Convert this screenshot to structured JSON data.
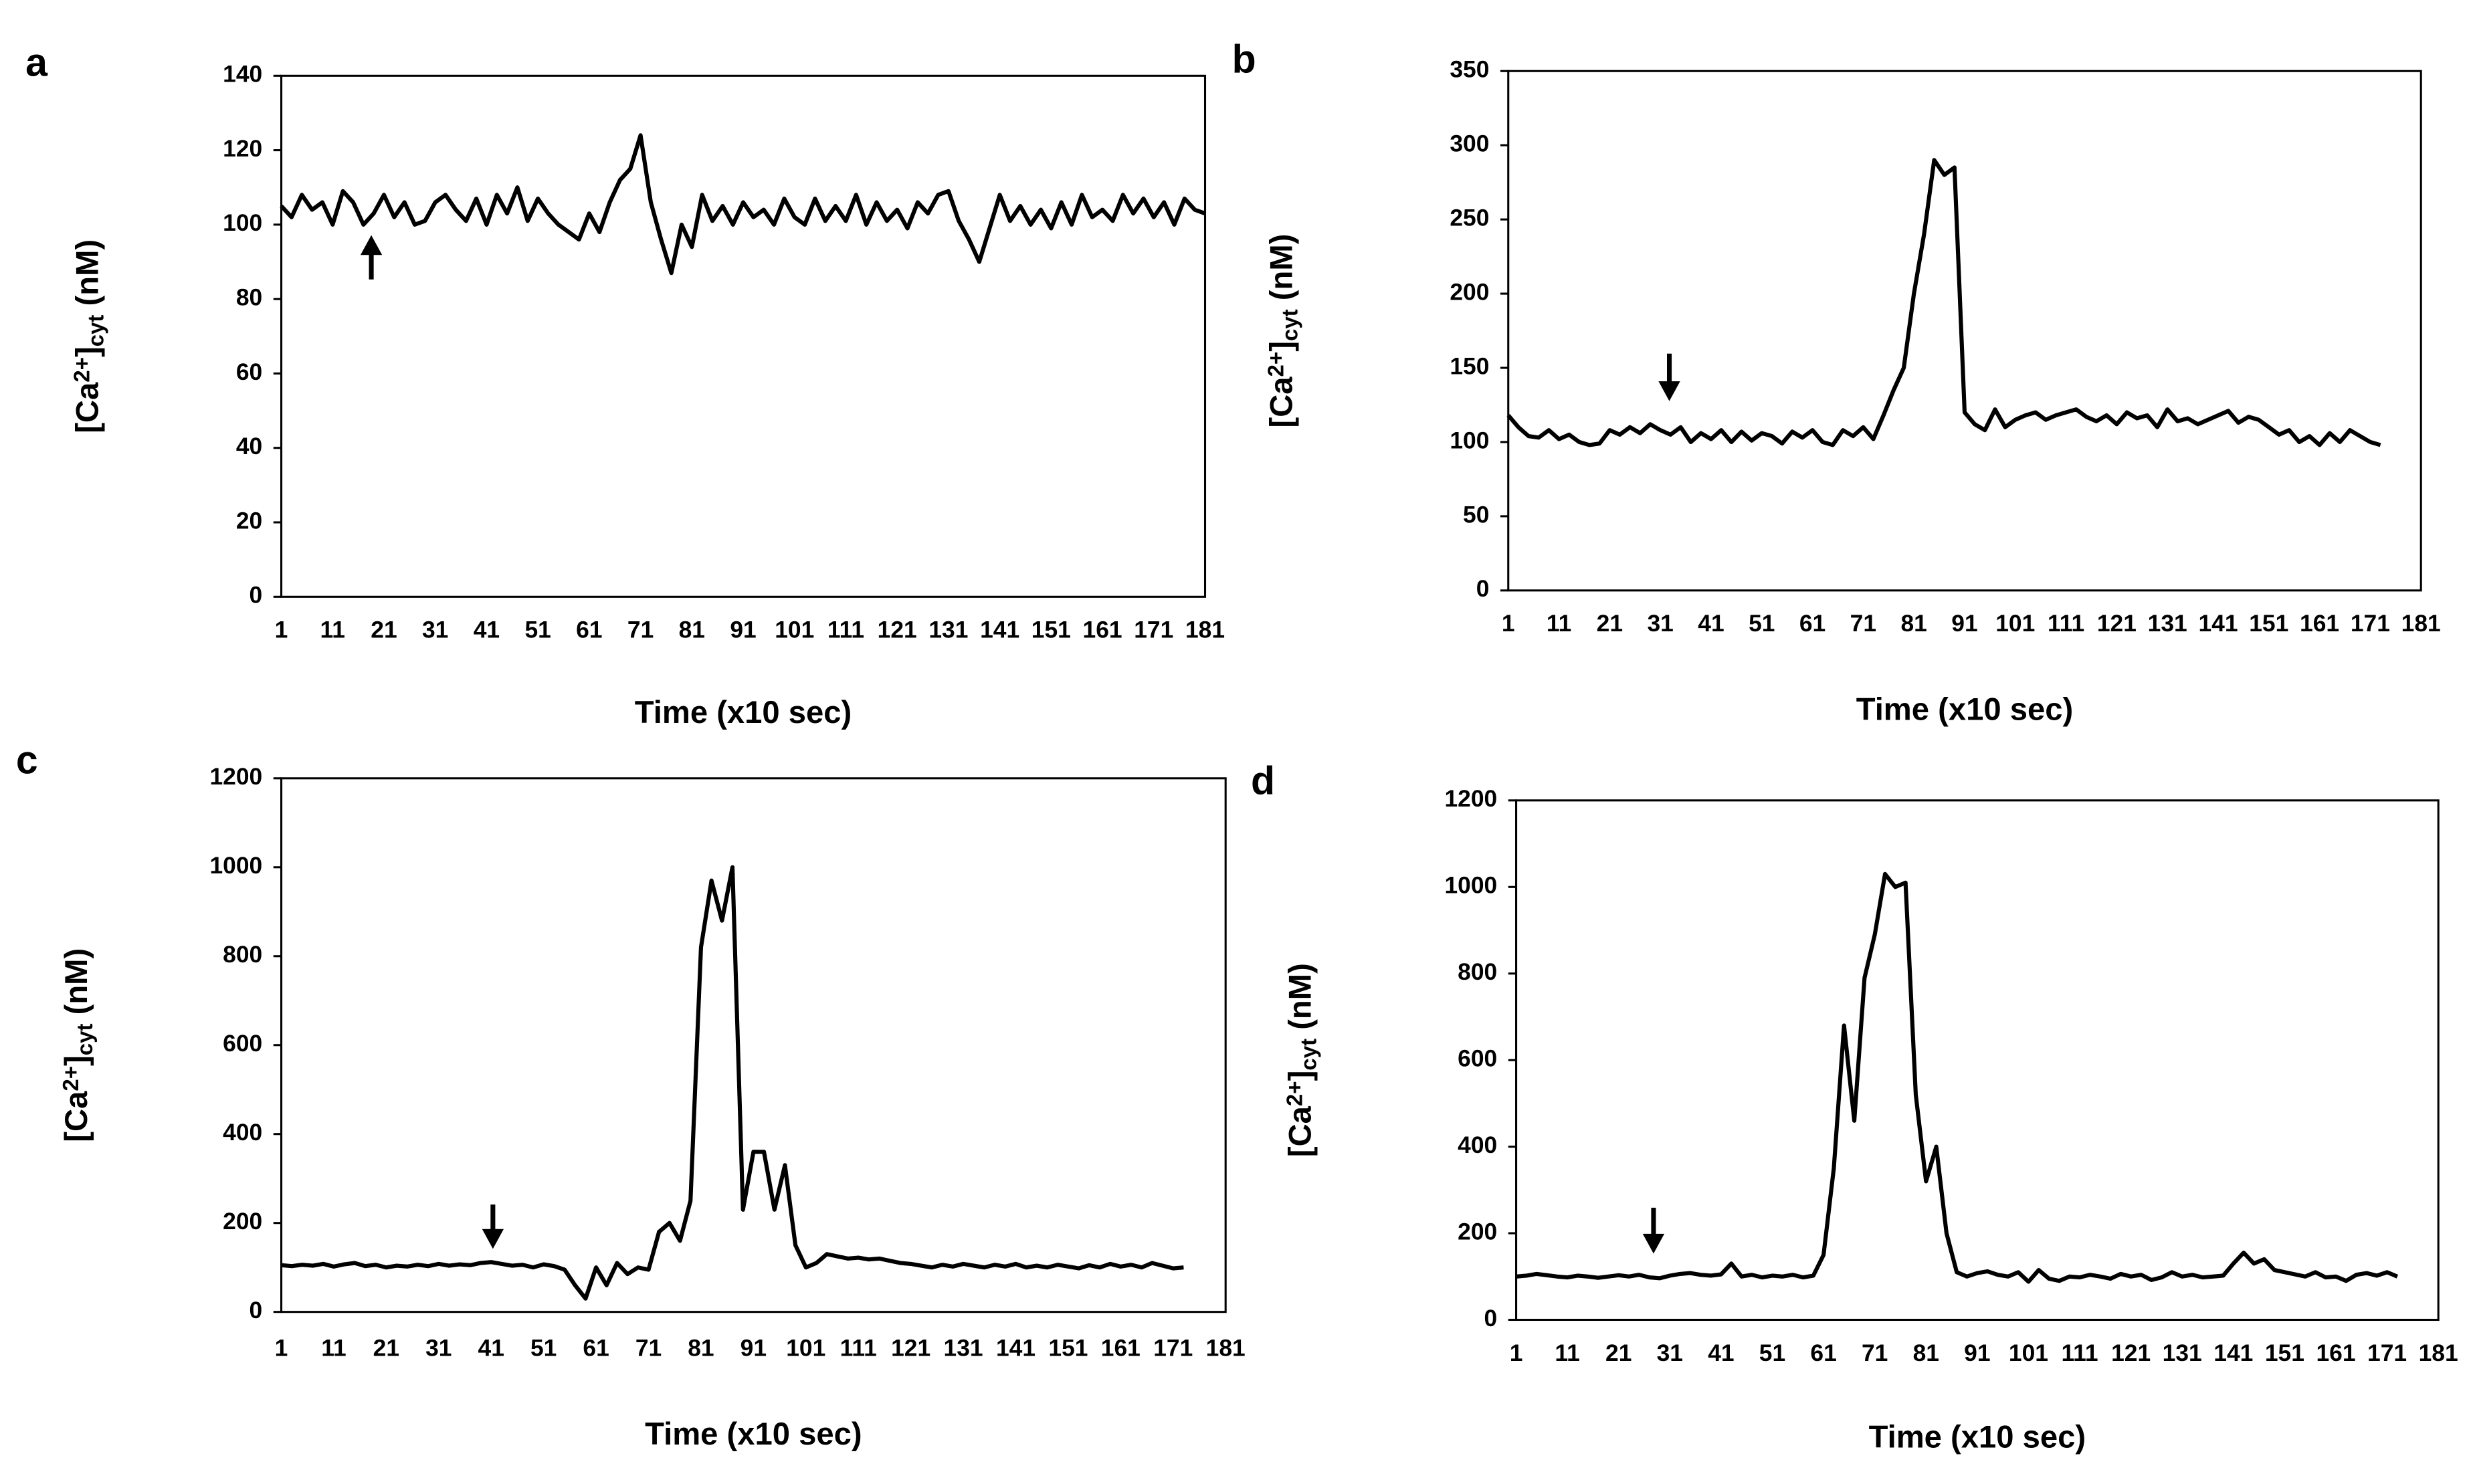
{
  "chart_data": [
    {
      "type": "line",
      "label": "a",
      "xlabel": "Time (x10 sec)",
      "ylabel": [
        "[Ca",
        "2+",
        "]",
        "cyt",
        " (nM)"
      ],
      "color": "#000000",
      "xlim": [
        1,
        181
      ],
      "xticks": [
        1,
        11,
        21,
        31,
        41,
        51,
        61,
        71,
        81,
        91,
        101,
        111,
        121,
        131,
        141,
        151,
        161,
        171,
        181
      ],
      "ylim": [
        0,
        140
      ],
      "yticks": [
        0,
        20,
        40,
        60,
        80,
        100,
        120,
        140
      ],
      "x": [
        1,
        3,
        5,
        7,
        9,
        11,
        13,
        15,
        17,
        19,
        21,
        23,
        25,
        27,
        29,
        31,
        33,
        35,
        37,
        39,
        41,
        43,
        45,
        47,
        49,
        51,
        53,
        55,
        57,
        59,
        61,
        63,
        65,
        67,
        69,
        71,
        73,
        75,
        77,
        79,
        81,
        83,
        85,
        87,
        89,
        91,
        93,
        95,
        97,
        99,
        101,
        103,
        105,
        107,
        109,
        111,
        113,
        115,
        117,
        119,
        121,
        123,
        125,
        127,
        129,
        131,
        133,
        135,
        137,
        139,
        141,
        143,
        145,
        147,
        149,
        151,
        153,
        155,
        157,
        159,
        161,
        163,
        165,
        167,
        169,
        171,
        173,
        175,
        177,
        179,
        181
      ],
      "values": [
        105,
        102,
        108,
        104,
        106,
        100,
        109,
        106,
        100,
        103,
        108,
        102,
        106,
        100,
        101,
        106,
        108,
        104,
        101,
        107,
        100,
        108,
        103,
        110,
        101,
        107,
        103,
        100,
        98,
        96,
        103,
        98,
        106,
        112,
        115,
        124,
        106,
        96,
        87,
        100,
        94,
        108,
        101,
        105,
        100,
        106,
        102,
        104,
        100,
        107,
        102,
        100,
        107,
        101,
        105,
        101,
        108,
        100,
        106,
        101,
        104,
        99,
        106,
        103,
        108,
        109,
        101,
        96,
        90,
        99,
        108,
        101,
        105,
        100,
        104,
        99,
        106,
        100,
        108,
        102,
        104,
        101,
        108,
        103,
        107,
        102,
        106,
        100,
        107,
        104,
        103
      ]
    },
    {
      "type": "line",
      "label": "b",
      "xlabel": "Time (x10 sec)",
      "ylabel": [
        "[Ca",
        "2+",
        "]",
        "cyt",
        " (nM)"
      ],
      "color": "#000000",
      "xlim": [
        1,
        181
      ],
      "xticks": [
        1,
        11,
        21,
        31,
        41,
        51,
        61,
        71,
        81,
        91,
        101,
        111,
        121,
        131,
        141,
        151,
        161,
        171,
        181
      ],
      "ylim": [
        0,
        350
      ],
      "yticks": [
        0,
        50,
        100,
        150,
        200,
        250,
        300,
        350
      ],
      "x": [
        1,
        3,
        5,
        7,
        9,
        11,
        13,
        15,
        17,
        19,
        21,
        23,
        25,
        27,
        29,
        31,
        33,
        35,
        37,
        39,
        41,
        43,
        45,
        47,
        49,
        51,
        53,
        55,
        57,
        59,
        61,
        63,
        65,
        67,
        69,
        71,
        73,
        75,
        77,
        79,
        81,
        83,
        85,
        87,
        89,
        91,
        93,
        95,
        97,
        99,
        101,
        103,
        105,
        107,
        109,
        111,
        113,
        115,
        117,
        119,
        121,
        123,
        125,
        127,
        129,
        131,
        133,
        135,
        137,
        139,
        141,
        143,
        145,
        147,
        149,
        151,
        153,
        155,
        157,
        159,
        161,
        163,
        165,
        167,
        169,
        171,
        173
      ],
      "values": [
        118,
        110,
        104,
        103,
        108,
        102,
        105,
        100,
        98,
        99,
        108,
        105,
        110,
        106,
        112,
        108,
        105,
        110,
        100,
        106,
        102,
        108,
        100,
        107,
        101,
        106,
        104,
        99,
        107,
        103,
        108,
        100,
        98,
        108,
        104,
        110,
        102,
        118,
        135,
        150,
        200,
        240,
        290,
        280,
        285,
        120,
        112,
        108,
        122,
        110,
        115,
        118,
        120,
        115,
        118,
        120,
        122,
        117,
        114,
        118,
        112,
        120,
        116,
        118,
        110,
        122,
        114,
        116,
        112,
        115,
        118,
        121,
        113,
        117,
        115,
        110,
        105,
        108,
        100,
        104,
        98,
        106,
        100,
        108,
        104,
        100,
        98
      ]
    },
    {
      "type": "line",
      "label": "c",
      "xlabel": "Time (x10 sec)",
      "ylabel": [
        "[Ca",
        "2+",
        "]",
        "cyt",
        " (nM)"
      ],
      "color": "#000000",
      "xlim": [
        1,
        181
      ],
      "xticks": [
        1,
        11,
        21,
        31,
        41,
        51,
        61,
        71,
        81,
        91,
        101,
        111,
        121,
        131,
        141,
        151,
        161,
        171,
        181
      ],
      "ylim": [
        0,
        1200
      ],
      "yticks": [
        0,
        200,
        400,
        600,
        800,
        1000,
        1200
      ],
      "x": [
        1,
        3,
        5,
        7,
        9,
        11,
        13,
        15,
        17,
        19,
        21,
        23,
        25,
        27,
        29,
        31,
        33,
        35,
        37,
        39,
        41,
        43,
        45,
        47,
        49,
        51,
        53,
        55,
        57,
        59,
        61,
        63,
        65,
        67,
        69,
        71,
        73,
        75,
        77,
        79,
        81,
        83,
        85,
        87,
        89,
        91,
        93,
        95,
        97,
        99,
        101,
        103,
        105,
        107,
        109,
        111,
        113,
        115,
        117,
        119,
        121,
        123,
        125,
        127,
        129,
        131,
        133,
        135,
        137,
        139,
        141,
        143,
        145,
        147,
        149,
        151,
        153,
        155,
        157,
        159,
        161,
        163,
        165,
        167,
        169,
        171,
        173
      ],
      "values": [
        105,
        103,
        106,
        104,
        108,
        102,
        107,
        110,
        103,
        106,
        100,
        104,
        102,
        106,
        103,
        108,
        104,
        107,
        105,
        110,
        112,
        108,
        104,
        106,
        100,
        107,
        103,
        95,
        60,
        30,
        100,
        60,
        110,
        85,
        100,
        95,
        180,
        200,
        160,
        250,
        820,
        970,
        880,
        1000,
        230,
        360,
        360,
        230,
        330,
        150,
        100,
        110,
        130,
        125,
        120,
        122,
        118,
        120,
        115,
        110,
        108,
        104,
        100,
        106,
        102,
        108,
        104,
        100,
        106,
        102,
        108,
        100,
        104,
        100,
        106,
        102,
        98,
        105,
        100,
        108,
        102,
        106,
        100,
        110,
        104,
        98,
        100
      ]
    },
    {
      "type": "line",
      "label": "d",
      "xlabel": "Time (x10 sec)",
      "ylabel": [
        "[Ca",
        "2+",
        "]",
        "cyt",
        " (nM)"
      ],
      "color": "#000000",
      "xlim": [
        1,
        181
      ],
      "xticks": [
        1,
        11,
        21,
        31,
        41,
        51,
        61,
        71,
        81,
        91,
        101,
        111,
        121,
        131,
        141,
        151,
        161,
        171,
        181
      ],
      "ylim": [
        0,
        1200
      ],
      "yticks": [
        0,
        200,
        400,
        600,
        800,
        1000,
        1200
      ],
      "x": [
        1,
        3,
        5,
        7,
        9,
        11,
        13,
        15,
        17,
        19,
        21,
        23,
        25,
        27,
        29,
        31,
        33,
        35,
        37,
        39,
        41,
        43,
        45,
        47,
        49,
        51,
        53,
        55,
        57,
        59,
        61,
        63,
        65,
        67,
        69,
        71,
        73,
        75,
        77,
        79,
        81,
        83,
        85,
        87,
        89,
        91,
        93,
        95,
        97,
        99,
        101,
        103,
        105,
        107,
        109,
        111,
        113,
        115,
        117,
        119,
        121,
        123,
        125,
        127,
        129,
        131,
        133,
        135,
        137,
        139,
        141,
        143,
        145,
        147,
        149,
        151,
        153,
        155,
        157,
        159,
        161,
        163,
        165,
        167,
        169,
        171,
        173
      ],
      "values": [
        100,
        102,
        106,
        103,
        100,
        98,
        102,
        100,
        97,
        100,
        103,
        100,
        104,
        98,
        96,
        102,
        106,
        108,
        104,
        102,
        105,
        130,
        100,
        104,
        98,
        102,
        100,
        104,
        98,
        102,
        150,
        350,
        680,
        460,
        790,
        890,
        1030,
        1000,
        1010,
        520,
        320,
        400,
        200,
        110,
        100,
        108,
        112,
        104,
        100,
        110,
        88,
        115,
        95,
        90,
        100,
        98,
        104,
        100,
        95,
        106,
        100,
        104,
        92,
        98,
        110,
        100,
        104,
        98,
        100,
        102,
        130,
        155,
        130,
        140,
        115,
        110,
        105,
        100,
        110,
        98,
        100,
        90,
        104,
        108,
        102,
        110,
        100
      ]
    }
  ]
}
